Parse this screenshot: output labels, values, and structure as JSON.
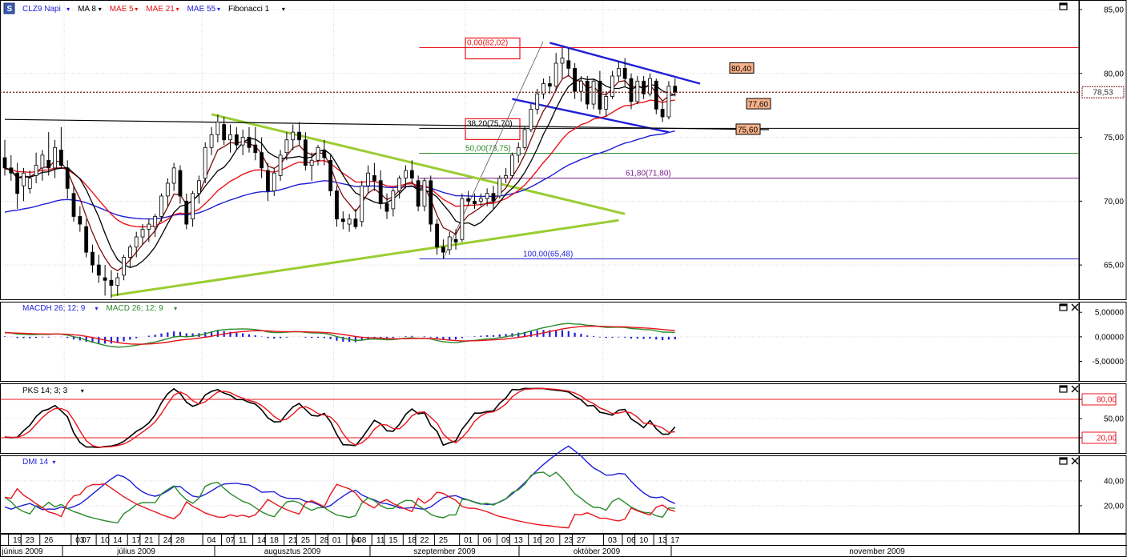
{
  "colors": {
    "black": "#000000",
    "red": "#e8141c",
    "darkred": "#7a0d0d",
    "blue": "#1f1fd6",
    "green": "#2a8a2a",
    "lime": "#9acd32",
    "purple": "#7a1c8a",
    "grid": "#d8d8d8",
    "axis_bg": "#ffffff",
    "bull": "#ffffff",
    "bear": "#000000"
  },
  "price_panel": {
    "legend": [
      {
        "text": "CLZ9 Napi",
        "color": "#1f1fd6",
        "icon": "instrument-icon",
        "arrow": "▾"
      },
      {
        "text": "MA 8",
        "color": "#000000",
        "arrow": "▾"
      },
      {
        "text": "MAE 5",
        "color": "#e8141c",
        "arrow": "▾"
      },
      {
        "text": "MAE 21",
        "color": "#e8141c",
        "arrow": "▾"
      },
      {
        "text": "MAE 55",
        "color": "#1f1fd6",
        "arrow": "▾"
      },
      {
        "text": "Fibonacci 1",
        "color": "#000000",
        "arrow": "▾"
      }
    ],
    "y_ticks": [
      "85,00",
      "80,00",
      "75,00",
      "70,00",
      "65,00"
    ],
    "y_tick_values": [
      85,
      80,
      75,
      70,
      65
    ],
    "ylim": [
      62.5,
      85.5
    ],
    "last_price_label": "78,53",
    "last_price": 78.53,
    "fib_labels": [
      {
        "text": "0,00(82,02)",
        "value": 82.02,
        "boxed": true,
        "color": "#e8141c"
      },
      {
        "text": "38,20(75,70)",
        "value": 75.7,
        "boxed": true,
        "color": "#000000"
      },
      {
        "text": "50,00(73,75)",
        "value": 73.75,
        "boxed": false,
        "color": "#2a8a2a"
      },
      {
        "text": "61,80(71,80)",
        "value": 71.8,
        "boxed": false,
        "color": "#7a1c8a"
      },
      {
        "text": "100,00(65,48)",
        "value": 65.48,
        "boxed": false,
        "color": "#1f1fd6"
      }
    ],
    "callouts": [
      {
        "text": "80,40",
        "value": 80.4
      },
      {
        "text": "77,60",
        "value": 77.6
      },
      {
        "text": "75,60",
        "value": 75.6
      }
    ]
  },
  "macd_panel": {
    "legend": [
      {
        "text": "MACDH 26; 12; 9",
        "color": "#1f1fd6",
        "arrow": "▾"
      },
      {
        "text": "MACD 26; 12; 9",
        "color": "#2a8a2a",
        "arrow": "▾"
      }
    ],
    "y_ticks": [
      "5,00000",
      "0,00000",
      "-5,00000"
    ],
    "y_tick_values": [
      5,
      0,
      -5
    ],
    "ylim": [
      -8.5,
      6.5
    ]
  },
  "pks_panel": {
    "legend": [
      {
        "text": "PKS 14; 3; 3",
        "color": "#000000",
        "arrow": "▾"
      }
    ],
    "y_ticks": [
      "80,00",
      "50,00",
      "20,00"
    ],
    "y_tick_values": [
      80,
      50,
      20
    ],
    "boxed_ticks": [
      "80,00",
      "20,00"
    ],
    "ylim": [
      0,
      100
    ]
  },
  "dmi_panel": {
    "legend": [
      {
        "text": "DMI 14",
        "color": "#1f1fd6",
        "arrow": "▾"
      }
    ],
    "y_ticks": [
      "40,00",
      "20,00"
    ],
    "y_tick_values": [
      40,
      20
    ],
    "ylim": [
      0,
      58
    ]
  },
  "x_axis": {
    "day_labels": [
      "19",
      "23",
      "26",
      "03",
      "07",
      "10",
      "14",
      "17",
      "21",
      "24",
      "28",
      "04",
      "07",
      "11",
      "14",
      "18",
      "21",
      "25",
      "28",
      "01",
      "04",
      "08",
      "11",
      "15",
      "18",
      "22",
      "25",
      "01",
      "06",
      "09",
      "13",
      "16",
      "20",
      "23",
      "27",
      "03",
      "06",
      "10",
      "13",
      "17"
    ],
    "month_labels": [
      "június 2009",
      "július 2009",
      "augusztus 2009",
      "szeptember 2009",
      "október 2009",
      "november 2009"
    ]
  },
  "chart_data": {
    "type": "candlestick",
    "instrument": "CLZ9 Napi",
    "indicators": [
      "MA 8",
      "MAE 5",
      "MAE 21",
      "MAE 55",
      "Fibonacci 1",
      "MACDH 26; 12; 9",
      "MACD 26; 12; 9",
      "PKS 14; 3; 3",
      "DMI 14"
    ],
    "candles": [
      {
        "d": "2009-06-17",
        "o": 73.4,
        "h": 74.8,
        "l": 72.0,
        "c": 72.6
      },
      {
        "d": "2009-06-18",
        "o": 72.6,
        "h": 73.6,
        "l": 71.6,
        "c": 72.2
      },
      {
        "d": "2009-06-19",
        "o": 72.2,
        "h": 73.0,
        "l": 69.4,
        "c": 70.6
      },
      {
        "d": "2009-06-22",
        "o": 71.2,
        "h": 72.6,
        "l": 70.0,
        "c": 72.2
      },
      {
        "d": "2009-06-23",
        "o": 71.0,
        "h": 72.4,
        "l": 70.6,
        "c": 71.8
      },
      {
        "d": "2009-06-24",
        "o": 72.0,
        "h": 73.8,
        "l": 71.4,
        "c": 72.8
      },
      {
        "d": "2009-06-25",
        "o": 72.6,
        "h": 74.0,
        "l": 71.6,
        "c": 73.6
      },
      {
        "d": "2009-06-26",
        "o": 73.2,
        "h": 75.4,
        "l": 72.0,
        "c": 72.6
      },
      {
        "d": "2009-06-29",
        "o": 72.6,
        "h": 74.8,
        "l": 71.8,
        "c": 74.2
      },
      {
        "d": "2009-06-30",
        "o": 74.0,
        "h": 75.8,
        "l": 72.6,
        "c": 72.8
      },
      {
        "d": "2009-07-01",
        "o": 72.6,
        "h": 73.2,
        "l": 70.2,
        "c": 71.0
      },
      {
        "d": "2009-07-02",
        "o": 70.6,
        "h": 71.2,
        "l": 68.4,
        "c": 68.8
      },
      {
        "d": "2009-07-06",
        "o": 68.8,
        "h": 69.6,
        "l": 67.6,
        "c": 68.2
      },
      {
        "d": "2009-07-07",
        "o": 68.0,
        "h": 68.6,
        "l": 65.6,
        "c": 66.0
      },
      {
        "d": "2009-07-08",
        "o": 66.0,
        "h": 66.6,
        "l": 64.4,
        "c": 65.0
      },
      {
        "d": "2009-07-09",
        "o": 65.0,
        "h": 65.8,
        "l": 63.6,
        "c": 64.2
      },
      {
        "d": "2009-07-10",
        "o": 64.0,
        "h": 65.0,
        "l": 62.6,
        "c": 63.8
      },
      {
        "d": "2009-07-13",
        "o": 63.8,
        "h": 64.6,
        "l": 62.4,
        "c": 63.4
      },
      {
        "d": "2009-07-14",
        "o": 63.4,
        "h": 64.4,
        "l": 62.6,
        "c": 64.0
      },
      {
        "d": "2009-07-15",
        "o": 64.2,
        "h": 65.8,
        "l": 63.8,
        "c": 65.6
      },
      {
        "d": "2009-07-16",
        "o": 65.6,
        "h": 66.6,
        "l": 64.8,
        "c": 66.4
      },
      {
        "d": "2009-07-17",
        "o": 66.4,
        "h": 67.6,
        "l": 65.6,
        "c": 67.2
      },
      {
        "d": "2009-07-20",
        "o": 67.2,
        "h": 68.2,
        "l": 66.6,
        "c": 67.8
      },
      {
        "d": "2009-07-21",
        "o": 67.8,
        "h": 68.6,
        "l": 66.8,
        "c": 68.2
      },
      {
        "d": "2009-07-22",
        "o": 68.0,
        "h": 69.0,
        "l": 67.2,
        "c": 68.8
      },
      {
        "d": "2009-07-23",
        "o": 68.8,
        "h": 70.6,
        "l": 68.4,
        "c": 70.4
      },
      {
        "d": "2009-07-24",
        "o": 70.4,
        "h": 71.8,
        "l": 69.6,
        "c": 71.4
      },
      {
        "d": "2009-07-27",
        "o": 71.4,
        "h": 73.0,
        "l": 70.8,
        "c": 72.6
      },
      {
        "d": "2009-07-28",
        "o": 72.4,
        "h": 72.8,
        "l": 69.8,
        "c": 70.4
      },
      {
        "d": "2009-07-29",
        "o": 70.0,
        "h": 70.6,
        "l": 67.8,
        "c": 68.2
      },
      {
        "d": "2009-07-30",
        "o": 68.6,
        "h": 70.8,
        "l": 68.0,
        "c": 70.6
      },
      {
        "d": "2009-07-31",
        "o": 70.6,
        "h": 72.0,
        "l": 69.8,
        "c": 71.6
      },
      {
        "d": "2009-08-03",
        "o": 71.8,
        "h": 74.6,
        "l": 71.4,
        "c": 74.2
      },
      {
        "d": "2009-08-04",
        "o": 74.2,
        "h": 75.8,
        "l": 73.6,
        "c": 75.2
      },
      {
        "d": "2009-08-05",
        "o": 75.2,
        "h": 76.8,
        "l": 74.6,
        "c": 76.2
      },
      {
        "d": "2009-08-06",
        "o": 76.0,
        "h": 76.6,
        "l": 74.4,
        "c": 74.8
      },
      {
        "d": "2009-08-07",
        "o": 74.8,
        "h": 76.0,
        "l": 73.8,
        "c": 75.2
      },
      {
        "d": "2009-08-10",
        "o": 75.2,
        "h": 75.8,
        "l": 74.0,
        "c": 74.4
      },
      {
        "d": "2009-08-11",
        "o": 74.4,
        "h": 75.6,
        "l": 73.6,
        "c": 75.0
      },
      {
        "d": "2009-08-12",
        "o": 75.0,
        "h": 75.8,
        "l": 73.8,
        "c": 74.2
      },
      {
        "d": "2009-08-13",
        "o": 74.4,
        "h": 75.8,
        "l": 73.2,
        "c": 73.8
      },
      {
        "d": "2009-08-14",
        "o": 73.8,
        "h": 75.0,
        "l": 71.8,
        "c": 72.6
      },
      {
        "d": "2009-08-17",
        "o": 72.4,
        "h": 73.0,
        "l": 70.0,
        "c": 70.8
      },
      {
        "d": "2009-08-18",
        "o": 70.8,
        "h": 72.6,
        "l": 70.4,
        "c": 72.2
      },
      {
        "d": "2009-08-19",
        "o": 72.0,
        "h": 74.0,
        "l": 71.6,
        "c": 73.6
      },
      {
        "d": "2009-08-20",
        "o": 73.8,
        "h": 75.4,
        "l": 73.2,
        "c": 74.8
      },
      {
        "d": "2009-08-21",
        "o": 74.8,
        "h": 76.0,
        "l": 74.0,
        "c": 75.4
      },
      {
        "d": "2009-08-24",
        "o": 75.4,
        "h": 76.2,
        "l": 74.4,
        "c": 74.8
      },
      {
        "d": "2009-08-25",
        "o": 74.8,
        "h": 75.4,
        "l": 72.4,
        "c": 72.8
      },
      {
        "d": "2009-08-26",
        "o": 72.8,
        "h": 73.8,
        "l": 71.6,
        "c": 73.2
      },
      {
        "d": "2009-08-27",
        "o": 73.2,
        "h": 74.4,
        "l": 72.8,
        "c": 74.2
      },
      {
        "d": "2009-08-28",
        "o": 74.0,
        "h": 74.8,
        "l": 72.8,
        "c": 73.4
      },
      {
        "d": "2009-08-31",
        "o": 73.2,
        "h": 73.6,
        "l": 70.4,
        "c": 70.8
      },
      {
        "d": "2009-09-01",
        "o": 70.8,
        "h": 71.2,
        "l": 68.0,
        "c": 68.6
      },
      {
        "d": "2009-09-02",
        "o": 68.6,
        "h": 69.2,
        "l": 67.8,
        "c": 68.4
      },
      {
        "d": "2009-09-03",
        "o": 68.2,
        "h": 69.0,
        "l": 67.6,
        "c": 68.6
      },
      {
        "d": "2009-09-04",
        "o": 68.6,
        "h": 69.4,
        "l": 67.8,
        "c": 68.0
      },
      {
        "d": "2009-09-08",
        "o": 68.4,
        "h": 71.6,
        "l": 68.0,
        "c": 71.2
      },
      {
        "d": "2009-09-09",
        "o": 71.2,
        "h": 72.8,
        "l": 70.6,
        "c": 72.2
      },
      {
        "d": "2009-09-10",
        "o": 72.0,
        "h": 73.0,
        "l": 70.8,
        "c": 71.6
      },
      {
        "d": "2009-09-11",
        "o": 71.6,
        "h": 72.4,
        "l": 69.4,
        "c": 69.8
      },
      {
        "d": "2009-09-14",
        "o": 69.8,
        "h": 70.6,
        "l": 68.6,
        "c": 69.2
      },
      {
        "d": "2009-09-15",
        "o": 69.4,
        "h": 71.0,
        "l": 68.8,
        "c": 70.8
      },
      {
        "d": "2009-09-16",
        "o": 70.8,
        "h": 72.0,
        "l": 70.2,
        "c": 71.8
      },
      {
        "d": "2009-09-17",
        "o": 71.8,
        "h": 72.8,
        "l": 71.0,
        "c": 72.4
      },
      {
        "d": "2009-09-18",
        "o": 72.4,
        "h": 73.2,
        "l": 71.4,
        "c": 71.8
      },
      {
        "d": "2009-09-21",
        "o": 71.6,
        "h": 72.0,
        "l": 69.2,
        "c": 69.6
      },
      {
        "d": "2009-09-22",
        "o": 69.6,
        "h": 71.8,
        "l": 69.2,
        "c": 71.6
      },
      {
        "d": "2009-09-23",
        "o": 71.6,
        "h": 72.0,
        "l": 67.6,
        "c": 68.2
      },
      {
        "d": "2009-09-24",
        "o": 68.2,
        "h": 68.6,
        "l": 65.8,
        "c": 66.4
      },
      {
        "d": "2009-09-25",
        "o": 66.4,
        "h": 67.0,
        "l": 65.5,
        "c": 66.0
      },
      {
        "d": "2009-09-28",
        "o": 66.2,
        "h": 67.6,
        "l": 65.8,
        "c": 67.2
      },
      {
        "d": "2009-09-29",
        "o": 67.0,
        "h": 67.8,
        "l": 66.2,
        "c": 66.8
      },
      {
        "d": "2009-09-30",
        "o": 67.0,
        "h": 70.6,
        "l": 66.8,
        "c": 70.2
      },
      {
        "d": "2009-10-01",
        "o": 70.2,
        "h": 70.8,
        "l": 69.6,
        "c": 70.0
      },
      {
        "d": "2009-10-02",
        "o": 70.0,
        "h": 70.6,
        "l": 69.4,
        "c": 69.8
      },
      {
        "d": "2009-10-05",
        "o": 70.0,
        "h": 70.6,
        "l": 69.6,
        "c": 70.2
      },
      {
        "d": "2009-10-06",
        "o": 70.2,
        "h": 71.0,
        "l": 69.6,
        "c": 70.6
      },
      {
        "d": "2009-10-07",
        "o": 70.6,
        "h": 71.2,
        "l": 69.4,
        "c": 70.0
      },
      {
        "d": "2009-10-08",
        "o": 70.4,
        "h": 72.0,
        "l": 70.2,
        "c": 71.8
      },
      {
        "d": "2009-10-09",
        "o": 71.8,
        "h": 72.6,
        "l": 71.4,
        "c": 72.0
      },
      {
        "d": "2009-10-12",
        "o": 72.0,
        "h": 73.8,
        "l": 71.8,
        "c": 73.6
      },
      {
        "d": "2009-10-13",
        "o": 73.6,
        "h": 74.6,
        "l": 73.0,
        "c": 74.2
      },
      {
        "d": "2009-10-14",
        "o": 74.2,
        "h": 75.8,
        "l": 74.0,
        "c": 75.6
      },
      {
        "d": "2009-10-15",
        "o": 75.6,
        "h": 77.6,
        "l": 75.4,
        "c": 77.2
      },
      {
        "d": "2009-10-16",
        "o": 77.2,
        "h": 78.8,
        "l": 76.8,
        "c": 78.4
      },
      {
        "d": "2009-10-19",
        "o": 78.4,
        "h": 79.6,
        "l": 78.0,
        "c": 79.2
      },
      {
        "d": "2009-10-20",
        "o": 79.2,
        "h": 79.8,
        "l": 78.4,
        "c": 79.0
      },
      {
        "d": "2009-10-21",
        "o": 79.0,
        "h": 81.6,
        "l": 78.6,
        "c": 80.8
      },
      {
        "d": "2009-10-22",
        "o": 80.8,
        "h": 82.0,
        "l": 79.6,
        "c": 81.2
      },
      {
        "d": "2009-10-23",
        "o": 81.0,
        "h": 82.0,
        "l": 79.8,
        "c": 80.4
      },
      {
        "d": "2009-10-26",
        "o": 80.4,
        "h": 80.8,
        "l": 78.0,
        "c": 78.6
      },
      {
        "d": "2009-10-27",
        "o": 78.6,
        "h": 79.8,
        "l": 77.8,
        "c": 79.4
      },
      {
        "d": "2009-10-28",
        "o": 79.4,
        "h": 79.8,
        "l": 77.2,
        "c": 77.6
      },
      {
        "d": "2009-10-29",
        "o": 77.6,
        "h": 79.6,
        "l": 77.2,
        "c": 79.4
      },
      {
        "d": "2009-10-30",
        "o": 79.4,
        "h": 80.2,
        "l": 76.8,
        "c": 77.2
      },
      {
        "d": "2009-11-02",
        "o": 77.2,
        "h": 78.6,
        "l": 76.6,
        "c": 78.2
      },
      {
        "d": "2009-11-03",
        "o": 78.2,
        "h": 80.2,
        "l": 78.0,
        "c": 79.8
      },
      {
        "d": "2009-11-04",
        "o": 79.8,
        "h": 81.0,
        "l": 79.4,
        "c": 80.4
      },
      {
        "d": "2009-11-05",
        "o": 80.4,
        "h": 81.2,
        "l": 79.0,
        "c": 79.6
      },
      {
        "d": "2009-11-06",
        "o": 79.6,
        "h": 80.0,
        "l": 77.2,
        "c": 77.8
      },
      {
        "d": "2009-11-09",
        "o": 77.8,
        "h": 79.8,
        "l": 77.6,
        "c": 79.4
      },
      {
        "d": "2009-11-10",
        "o": 79.4,
        "h": 79.8,
        "l": 78.0,
        "c": 78.4
      },
      {
        "d": "2009-11-11",
        "o": 78.4,
        "h": 80.0,
        "l": 78.2,
        "c": 79.6
      },
      {
        "d": "2009-11-12",
        "o": 79.4,
        "h": 79.6,
        "l": 76.8,
        "c": 77.2
      },
      {
        "d": "2009-11-13",
        "o": 77.2,
        "h": 77.8,
        "l": 76.2,
        "c": 76.6
      },
      {
        "d": "2009-11-16",
        "o": 76.6,
        "h": 79.4,
        "l": 76.4,
        "c": 79.0
      },
      {
        "d": "2009-11-17",
        "o": 79.0,
        "h": 79.6,
        "l": 78.2,
        "c": 78.53
      }
    ],
    "fibonacci": [
      {
        "level": "0,00",
        "price": 82.02
      },
      {
        "level": "38,20",
        "price": 75.7
      },
      {
        "level": "50,00",
        "price": 73.75
      },
      {
        "level": "61,80",
        "price": 71.8
      },
      {
        "level": "100,00",
        "price": 65.48
      }
    ],
    "trendlines": [
      {
        "name": "triangle-upper",
        "color": "#9acd32",
        "from": {
          "d": "2009-08-04",
          "p": 76.8
        },
        "to": {
          "d": "2009-11-05",
          "p": 69.0
        }
      },
      {
        "name": "triangle-lower",
        "color": "#9acd32",
        "from": {
          "d": "2009-07-13",
          "p": 62.6
        },
        "to": {
          "d": "2009-11-04",
          "p": 68.5
        }
      },
      {
        "name": "channel-upper",
        "color": "#1f1fd6",
        "from": {
          "d": "2009-10-20",
          "p": 82.4
        },
        "to": {
          "d": "2009-11-23",
          "p": 79.2
        }
      },
      {
        "name": "channel-lower",
        "color": "#1f1fd6",
        "from": {
          "d": "2009-10-12",
          "p": 78.0
        },
        "to": {
          "d": "2009-11-16",
          "p": 75.4
        }
      },
      {
        "name": "horizontal-resistance",
        "color": "#000000",
        "from": {
          "d": "2009-06-17",
          "p": 76.4
        },
        "to": {
          "d": "2009-12-08",
          "p": 75.6
        }
      }
    ],
    "last_close": 78.53
  }
}
